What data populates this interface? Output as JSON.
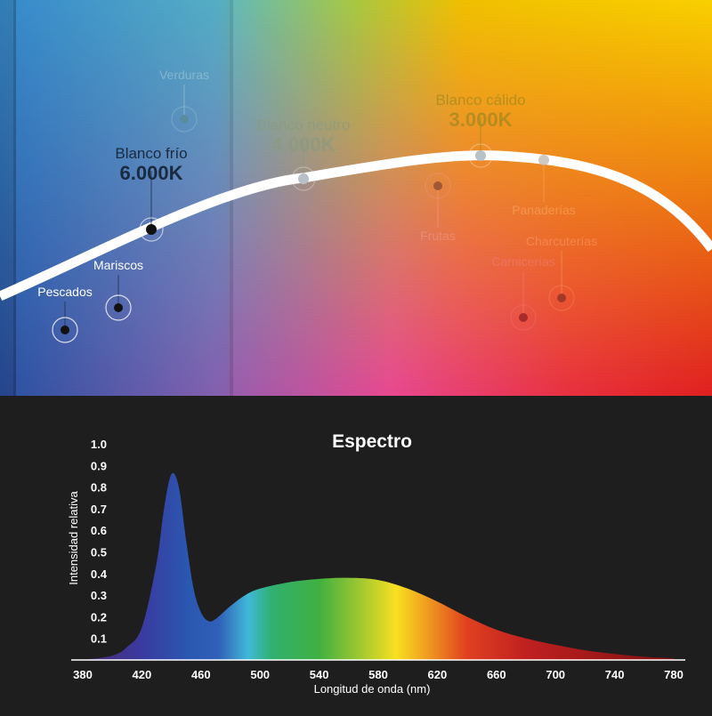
{
  "color_temperatures": [
    {
      "name": "Blanco frío",
      "value": "6.000K",
      "highlighted": true
    },
    {
      "name": "Blanco neutro",
      "value": "4.000K",
      "highlighted": false
    },
    {
      "name": "Blanco cálido",
      "value": "3.000K",
      "highlighted": false
    }
  ],
  "applications": [
    {
      "label": "Pescados",
      "highlighted": true
    },
    {
      "label": "Mariscos",
      "highlighted": true
    },
    {
      "label": "Verduras",
      "highlighted": false
    },
    {
      "label": "Frutas",
      "highlighted": false
    },
    {
      "label": "Panaderías",
      "highlighted": false
    },
    {
      "label": "Charcuterías",
      "highlighted": false
    },
    {
      "label": "Carnicerías",
      "highlighted": false
    }
  ],
  "chart_data": {
    "type": "area",
    "title": "Espectro",
    "xlabel": "Longitud de onda (nm)",
    "ylabel": "Intensidad relativa",
    "xlim": [
      380,
      780
    ],
    "ylim": [
      0,
      1.0
    ],
    "x_ticks": [
      380,
      420,
      460,
      500,
      540,
      580,
      620,
      660,
      700,
      740,
      780
    ],
    "y_ticks": [
      0.1,
      0.2,
      0.3,
      0.4,
      0.5,
      0.6,
      0.7,
      0.8,
      0.9,
      1.0
    ],
    "grid": false,
    "fill": "visible-spectrum gradient",
    "x": [
      380,
      400,
      410,
      420,
      430,
      435,
      440,
      445,
      450,
      455,
      460,
      465,
      470,
      480,
      490,
      500,
      520,
      540,
      560,
      580,
      600,
      620,
      640,
      660,
      680,
      700,
      720,
      740,
      760,
      780
    ],
    "y": [
      0.0,
      0.02,
      0.06,
      0.15,
      0.45,
      0.7,
      0.86,
      0.8,
      0.55,
      0.33,
      0.22,
      0.18,
      0.19,
      0.25,
      0.3,
      0.33,
      0.36,
      0.375,
      0.38,
      0.37,
      0.33,
      0.27,
      0.2,
      0.14,
      0.1,
      0.07,
      0.045,
      0.028,
      0.015,
      0.008
    ]
  }
}
